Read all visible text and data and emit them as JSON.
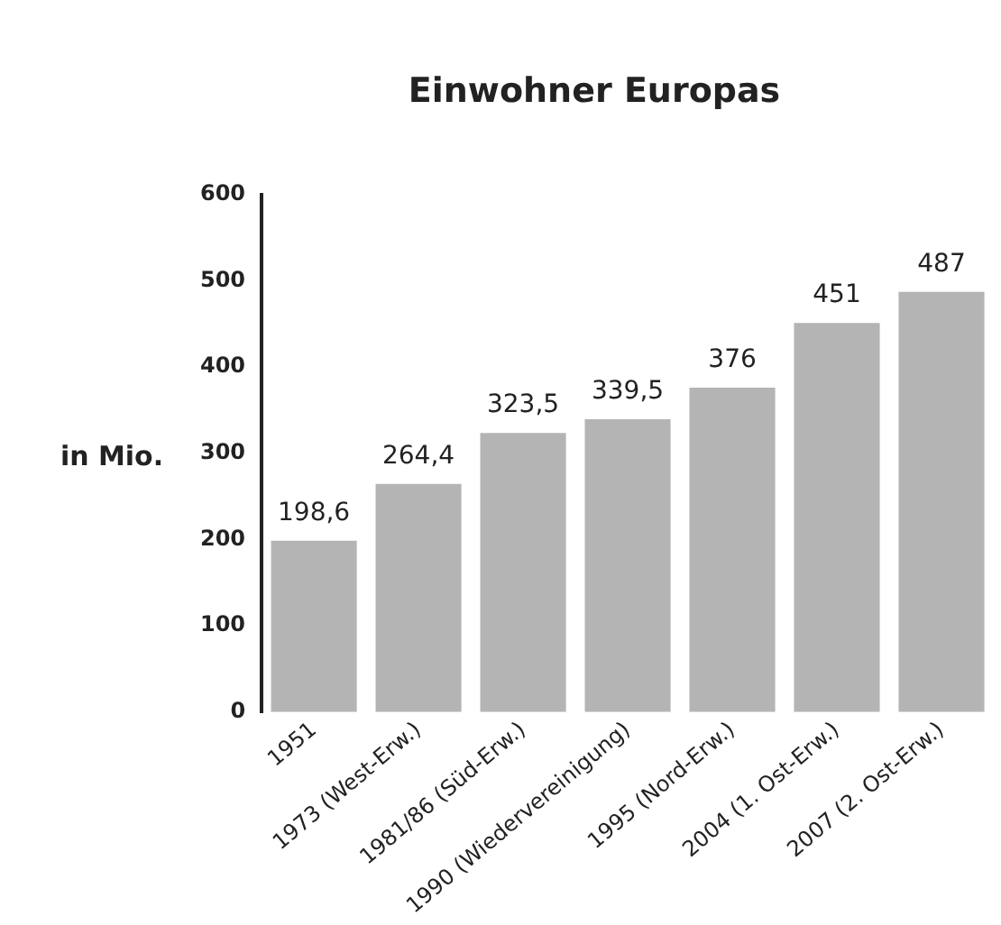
{
  "chart_data": {
    "type": "bar",
    "title": "Einwohner Europas",
    "ylabel": "in Mio.",
    "categories": [
      "1951",
      "1973 (West-Erw.)",
      "1981/86 (Süd-Erw.)",
      "1990 (Wiedervereinigung)",
      "1995 (Nord-Erw.)",
      "2004 (1. Ost-Erw.)",
      "2007 (2. Ost-Erw.)"
    ],
    "values": [
      198.6,
      264.4,
      323.5,
      339.5,
      376,
      451,
      487
    ],
    "value_labels": [
      "198,6",
      "264,4",
      "323,5",
      "339,5",
      "376",
      "451",
      "487"
    ],
    "color": "#b4b4b4",
    "ylim": [
      0,
      600
    ],
    "yticks": [
      0,
      100,
      200,
      300,
      400,
      500,
      600
    ],
    "grid": false,
    "legend": false
  }
}
